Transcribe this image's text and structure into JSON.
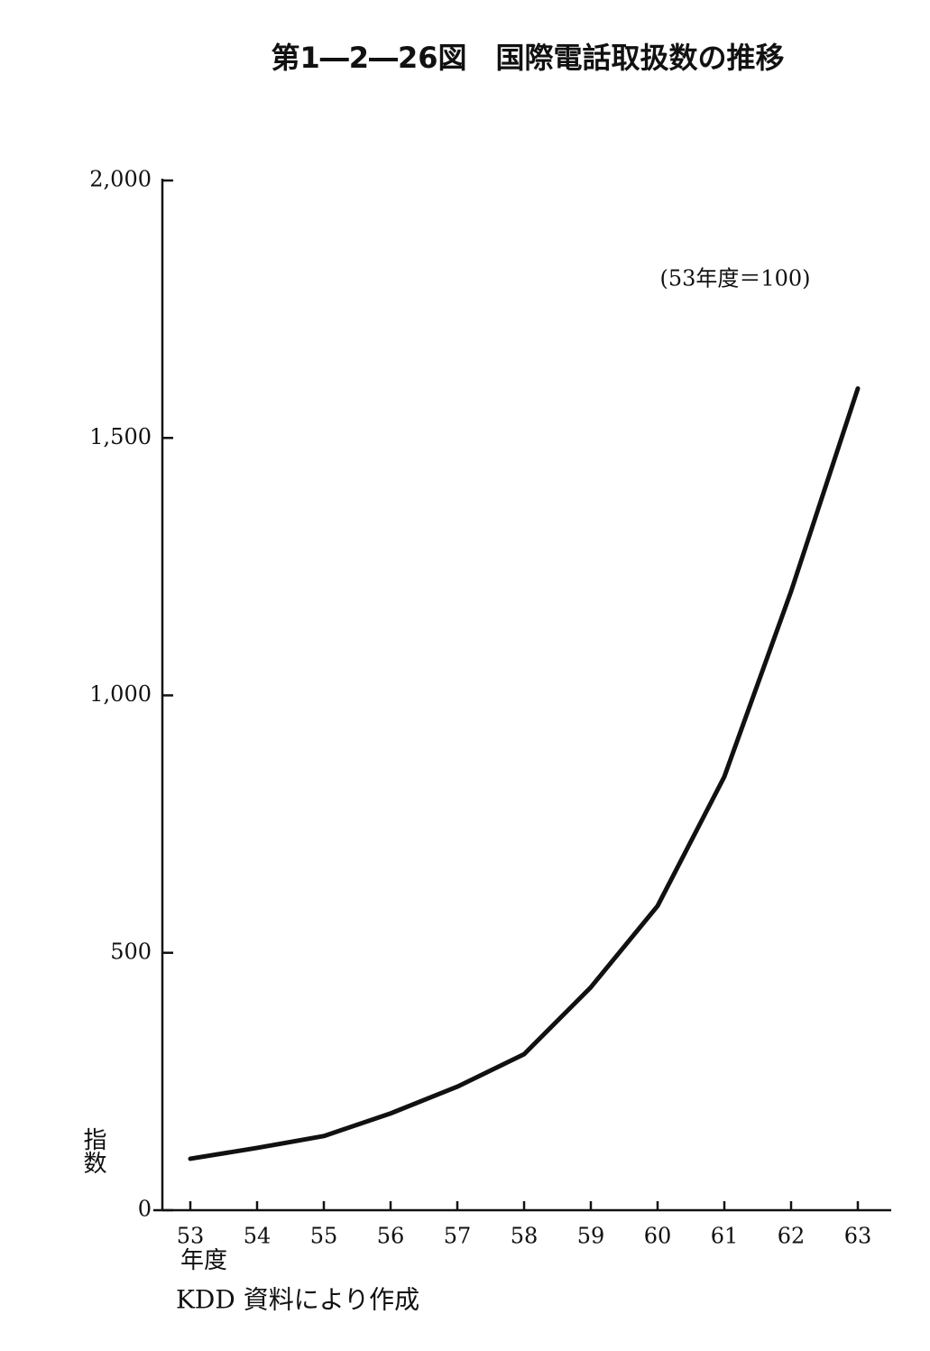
{
  "chart_data": {
    "type": "line",
    "title": "第1―2―26図　国際電話取扱数の推移",
    "note": "(53年度＝100)",
    "y_label": "指数",
    "x_label": "年度",
    "source": "KDD 資料により作成",
    "categories": [
      "53",
      "54",
      "55",
      "56",
      "57",
      "58",
      "59",
      "60",
      "61",
      "62",
      "63"
    ],
    "series": [
      {
        "name": "国際電話取扱数",
        "color": "#111111",
        "values": [
          100,
          121,
          144,
          188,
          240,
          303,
          433,
          591,
          842,
          1202,
          1596
        ]
      }
    ],
    "ylim": [
      0,
      2000
    ],
    "yticks": [
      0,
      500,
      {
        "value": 1000,
        "label": "1,000"
      },
      {
        "value": 1500,
        "label": "1,500"
      },
      {
        "value": 2000,
        "label": "2,000"
      }
    ],
    "grid": false
  }
}
